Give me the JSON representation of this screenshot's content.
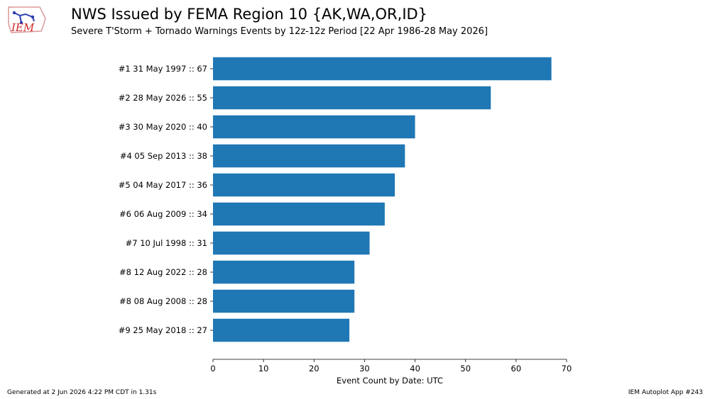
{
  "header": {
    "title": "NWS Issued by FEMA Region 10 {AK,WA,OR,ID}",
    "subtitle": "Severe T'Storm + Tornado Warnings Events by 12z-12z Period [22 Apr 1986-28 May 2026]",
    "logo_text": "IEM"
  },
  "footer": {
    "generated": "Generated at 2 Jun 2026 4:22 PM CDT in 1.31s",
    "app": "IEM Autoplot App #243"
  },
  "colors": {
    "bar": "#1f77b4",
    "logo_text": "#cc2a2a",
    "logo_map": "#2b3fae"
  },
  "chart_data": {
    "type": "bar",
    "orientation": "horizontal",
    "categories": [
      "#1  31 May 1997 :: 67",
      "#2  28 May 2026 :: 55",
      "#3  30 May 2020 :: 40",
      "#4  05 Sep 2013 :: 38",
      "#5  04 May 2017 :: 36",
      "#6  06 Aug 2009 :: 34",
      "#7  10 Jul 1998 :: 31",
      "#8  12 Aug 2022 :: 28",
      "#8  08 Aug 2008 :: 28",
      "#9  25 May 2018 :: 27"
    ],
    "values": [
      67,
      55,
      40,
      38,
      36,
      34,
      31,
      28,
      28,
      27
    ],
    "xlabel": "Event Count by Date: UTC",
    "xlim": [
      0,
      70
    ],
    "xticks": [
      0,
      10,
      20,
      30,
      40,
      50,
      60,
      70
    ],
    "grid": false
  }
}
